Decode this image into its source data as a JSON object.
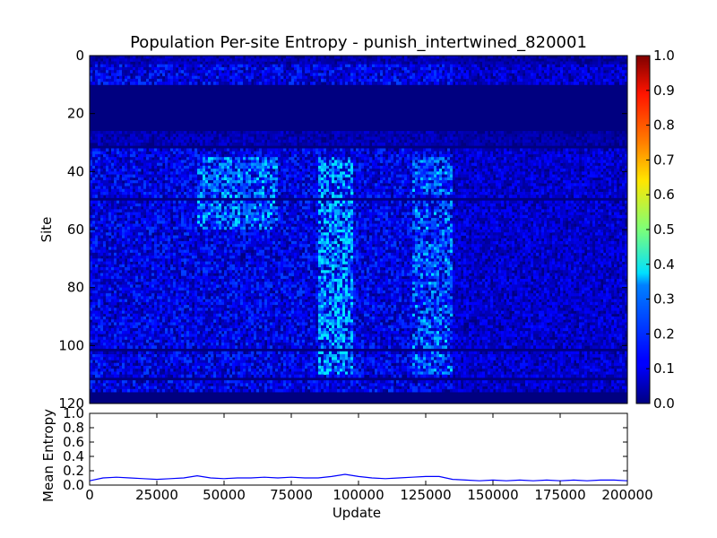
{
  "chart_data": [
    {
      "type": "heatmap",
      "title": "Population Per-site Entropy - punish_intertwined_820001",
      "ylabel": "Site",
      "xlabel": "",
      "ylim": [
        0,
        120
      ],
      "y_inverted": true,
      "y_ticks": [
        "0",
        "20",
        "40",
        "60",
        "80",
        "100",
        "120"
      ],
      "colormap": "jet",
      "colorbar_range": [
        0.0,
        1.0
      ],
      "colorbar_ticks": [
        "0.0",
        "0.1",
        "0.2",
        "0.3",
        "0.4",
        "0.5",
        "0.6",
        "0.7",
        "0.8",
        "0.9",
        "1.0"
      ],
      "x_range": [
        0,
        200000
      ],
      "zero_site_bands": [
        [
          10,
          26
        ],
        [
          31,
          32
        ],
        [
          49,
          50
        ],
        [
          101,
          102
        ],
        [
          111,
          112
        ],
        [
          116,
          120
        ]
      ],
      "low_site_bands": [
        [
          26,
          31
        ],
        [
          0,
          3
        ]
      ],
      "typical_entropy": 0.1,
      "peak_entropy": 0.35,
      "high_activity_regions": [
        {
          "x_range": [
            85000,
            98000
          ],
          "site_range": [
            35,
            110
          ],
          "level": 0.3
        },
        {
          "x_range": [
            40000,
            70000
          ],
          "site_range": [
            35,
            60
          ],
          "level": 0.22
        },
        {
          "x_range": [
            120000,
            135000
          ],
          "site_range": [
            35,
            110
          ],
          "level": 0.18
        }
      ],
      "grid": false
    },
    {
      "type": "line",
      "title": "",
      "xlabel": "Update",
      "ylabel": "Mean Entropy",
      "xlim": [
        0,
        200000
      ],
      "ylim": [
        0.0,
        1.0
      ],
      "x_ticks": [
        "0",
        "25000",
        "50000",
        "75000",
        "100000",
        "125000",
        "150000",
        "175000",
        "200000"
      ],
      "y_ticks": [
        "0.0",
        "0.2",
        "0.4",
        "0.6",
        "0.8",
        "1.0"
      ],
      "color": "#0000ff",
      "x": [
        0,
        5000,
        10000,
        15000,
        20000,
        25000,
        30000,
        35000,
        40000,
        45000,
        50000,
        55000,
        60000,
        65000,
        70000,
        75000,
        80000,
        85000,
        90000,
        95000,
        100000,
        105000,
        110000,
        115000,
        120000,
        125000,
        130000,
        135000,
        140000,
        145000,
        150000,
        155000,
        160000,
        165000,
        170000,
        175000,
        180000,
        185000,
        190000,
        195000,
        200000
      ],
      "values": [
        0.06,
        0.1,
        0.11,
        0.1,
        0.09,
        0.08,
        0.09,
        0.1,
        0.13,
        0.1,
        0.09,
        0.1,
        0.1,
        0.11,
        0.1,
        0.11,
        0.1,
        0.1,
        0.12,
        0.15,
        0.12,
        0.1,
        0.09,
        0.1,
        0.11,
        0.12,
        0.12,
        0.08,
        0.07,
        0.06,
        0.07,
        0.06,
        0.07,
        0.06,
        0.07,
        0.06,
        0.07,
        0.06,
        0.07,
        0.07,
        0.06
      ],
      "grid": false
    }
  ]
}
